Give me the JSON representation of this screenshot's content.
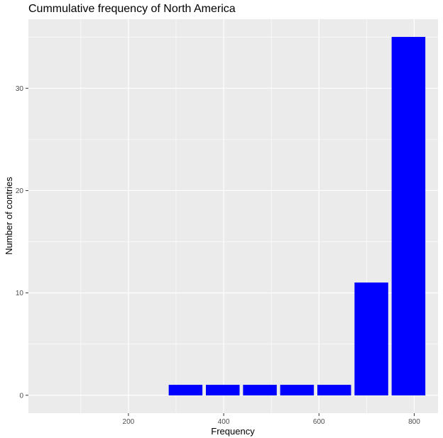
{
  "chart_data": {
    "type": "bar",
    "title": "Cummulative frequency of North America",
    "xlabel": "Frequency",
    "ylabel": "Number of contries",
    "x_ticks": [
      200,
      400,
      600,
      800
    ],
    "y_ticks": [
      0,
      10,
      20,
      30
    ],
    "xlim": [
      -10,
      850
    ],
    "ylim": [
      -1.75,
      36.75
    ],
    "bars": [
      {
        "x": 320,
        "value": 1
      },
      {
        "x": 398,
        "value": 1
      },
      {
        "x": 476,
        "value": 1
      },
      {
        "x": 554,
        "value": 1
      },
      {
        "x": 632,
        "value": 1
      },
      {
        "x": 710,
        "value": 11
      },
      {
        "x": 788,
        "value": 35
      }
    ],
    "bar_width": 70,
    "grid": true,
    "colors": {
      "bar_fill": "#0000ff",
      "panel_bg": "#ebebeb",
      "grid": "#ffffff"
    }
  }
}
